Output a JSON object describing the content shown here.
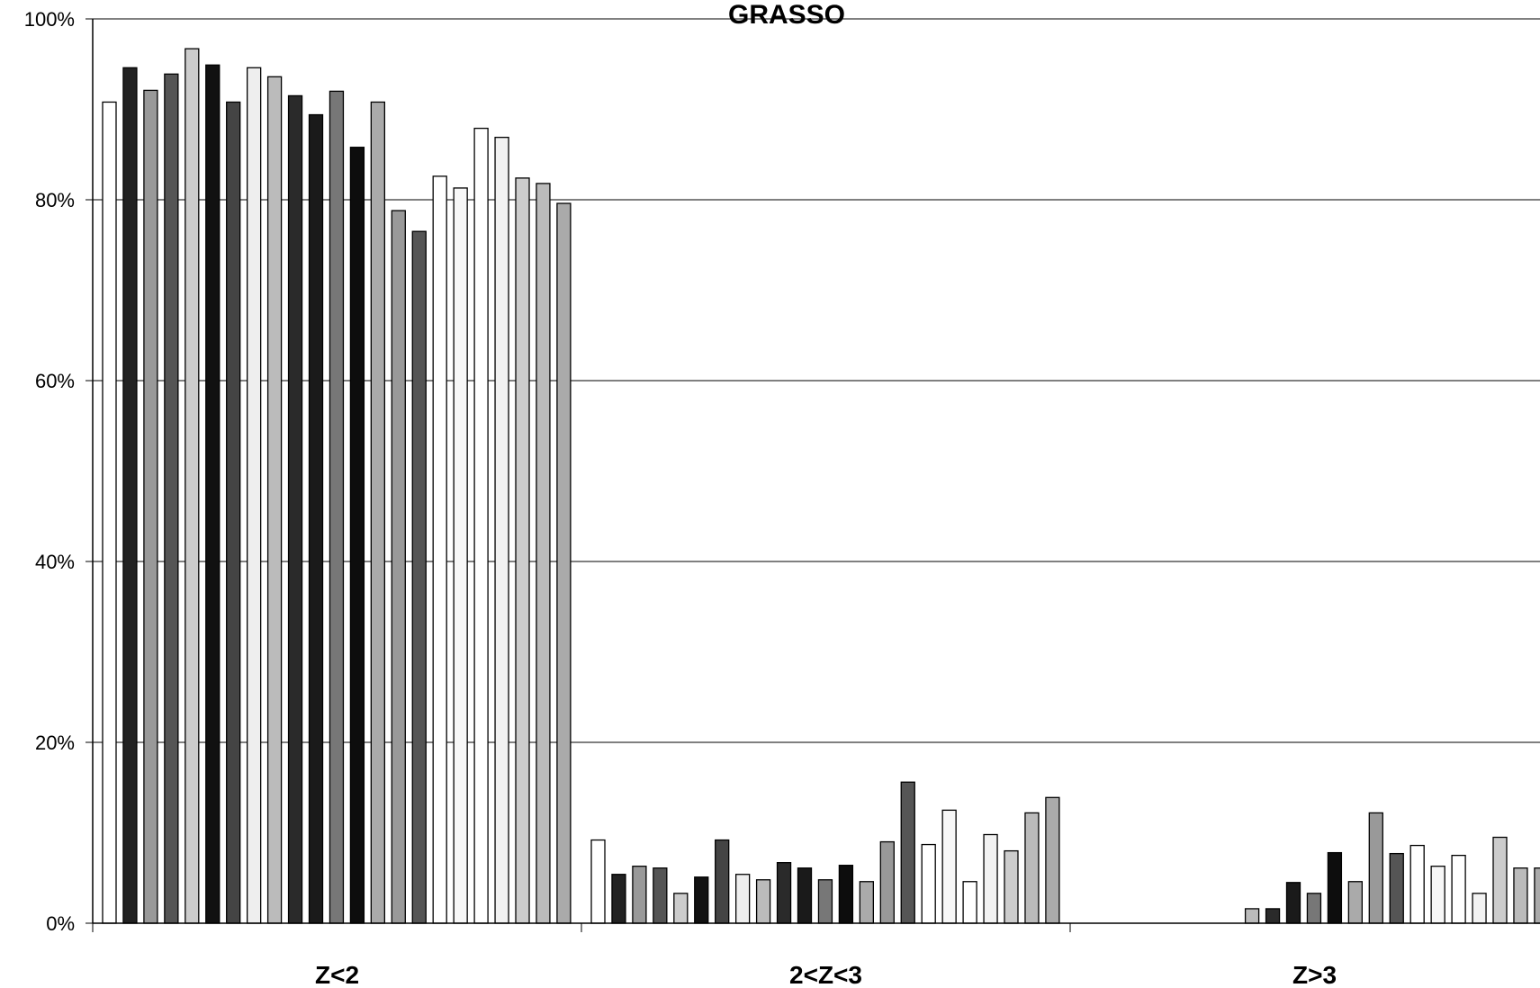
{
  "chart_data": {
    "type": "bar",
    "title": "GRASSO",
    "xlabel": "",
    "ylabel": "",
    "ylim": [
      0,
      100
    ],
    "yticks": [
      "0%",
      "20%",
      "40%",
      "60%",
      "80%",
      "100%"
    ],
    "grid": true,
    "categories": [
      "Z<2",
      "2<Z<3",
      "Z>3"
    ],
    "series": [
      {
        "color": "#ffffff",
        "values": [
          90.8,
          9.2,
          0.0
        ]
      },
      {
        "color": "#222222",
        "values": [
          94.6,
          5.4,
          0.0
        ]
      },
      {
        "color": "#999999",
        "values": [
          92.1,
          6.3,
          0.0
        ]
      },
      {
        "color": "#555555",
        "values": [
          93.9,
          6.1,
          0.0
        ]
      },
      {
        "color": "#cccccc",
        "values": [
          96.7,
          3.3,
          0.0
        ]
      },
      {
        "color": "#111111",
        "values": [
          94.9,
          5.1,
          0.0
        ]
      },
      {
        "color": "#444444",
        "values": [
          90.8,
          9.2,
          0.0
        ]
      },
      {
        "color": "#eeeeee",
        "values": [
          94.6,
          5.4,
          0.0
        ]
      },
      {
        "color": "#bbbbbb",
        "values": [
          93.6,
          4.8,
          1.6
        ]
      },
      {
        "color": "#2a2a2a",
        "values": [
          91.5,
          6.7,
          1.6
        ]
      },
      {
        "color": "#1a1a1a",
        "values": [
          89.4,
          6.1,
          4.5
        ]
      },
      {
        "color": "#777777",
        "values": [
          92.0,
          4.8,
          3.3
        ]
      },
      {
        "color": "#0d0d0d",
        "values": [
          85.8,
          6.4,
          7.8
        ]
      },
      {
        "color": "#aaaaaa",
        "values": [
          90.8,
          4.6,
          4.6
        ]
      },
      {
        "color": "#999999",
        "values": [
          78.8,
          9.0,
          12.2
        ]
      },
      {
        "color": "#555555",
        "values": [
          76.5,
          15.6,
          7.7
        ]
      },
      {
        "color": "#ffffff",
        "values": [
          82.6,
          8.7,
          8.6
        ]
      },
      {
        "color": "#f7f7f7",
        "values": [
          81.3,
          12.5,
          6.3
        ]
      },
      {
        "color": "#ffffff",
        "values": [
          87.9,
          4.6,
          7.5
        ]
      },
      {
        "color": "#f2f2f2",
        "values": [
          86.9,
          9.8,
          3.3
        ]
      },
      {
        "color": "#cccccc",
        "values": [
          82.4,
          8.0,
          9.5
        ]
      },
      {
        "color": "#bbbbbb",
        "values": [
          81.8,
          12.2,
          6.1
        ]
      },
      {
        "color": "#aaaaaa",
        "values": [
          79.6,
          13.9,
          6.1
        ]
      }
    ]
  }
}
